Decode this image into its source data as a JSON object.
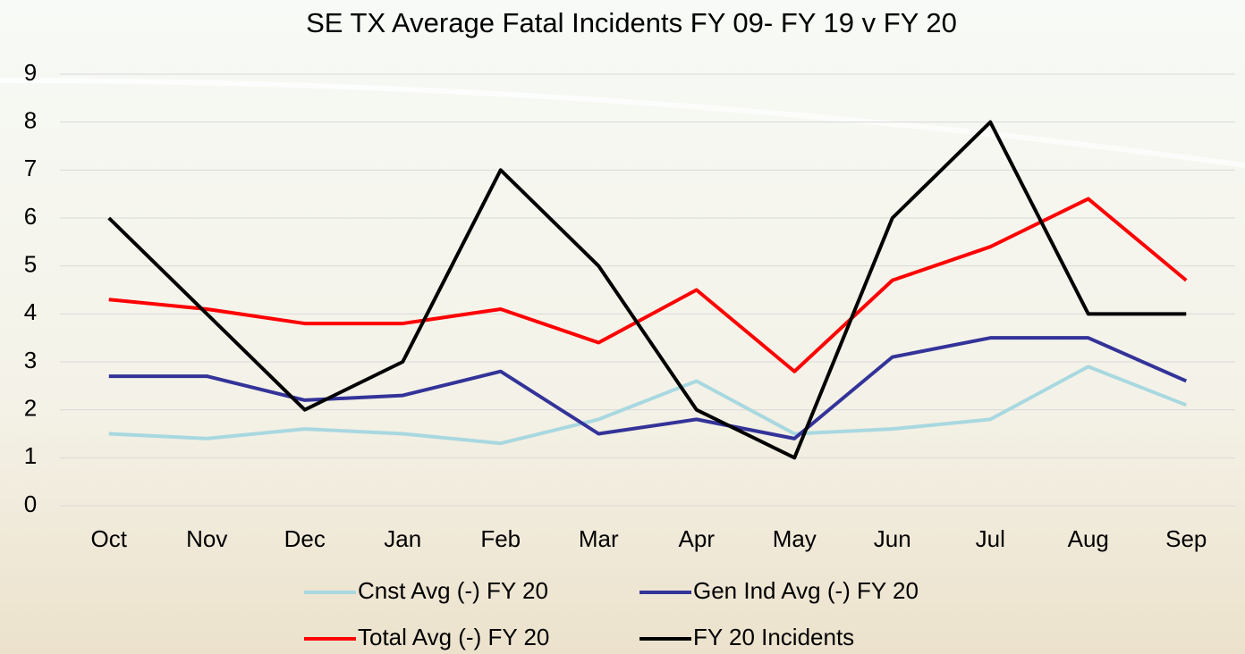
{
  "chart_data": {
    "type": "line",
    "title": "SE TX Average Fatal Incidents FY 09- FY 19 v FY 20",
    "categories": [
      "Oct",
      "Nov",
      "Dec",
      "Jan",
      "Feb",
      "Mar",
      "Apr",
      "May",
      "Jun",
      "Jul",
      "Aug",
      "Sep"
    ],
    "series": [
      {
        "name": "Cnst Avg (-) FY 20",
        "color": "#a8d8e0",
        "values": [
          1.5,
          1.4,
          1.6,
          1.5,
          1.3,
          1.8,
          2.6,
          1.5,
          1.6,
          1.8,
          2.9,
          2.1
        ]
      },
      {
        "name": "Gen Ind Avg (-) FY 20",
        "color": "#333399",
        "values": [
          2.7,
          2.7,
          2.2,
          2.3,
          2.8,
          1.5,
          1.8,
          1.4,
          3.1,
          3.5,
          3.5,
          2.6
        ]
      },
      {
        "name": "Total Avg (-) FY 20",
        "color": "#ff0000",
        "values": [
          4.3,
          4.1,
          3.8,
          3.8,
          4.1,
          3.4,
          4.5,
          2.8,
          4.7,
          5.4,
          6.4,
          4.7
        ]
      },
      {
        "name": "FY 20 Incidents",
        "color": "#000000",
        "values": [
          6,
          4,
          2,
          3,
          7,
          5,
          2,
          1,
          6,
          8,
          4,
          4
        ]
      }
    ],
    "ylim": [
      0,
      9
    ],
    "yticks": [
      0,
      1,
      2,
      3,
      4,
      5,
      6,
      7,
      8,
      9
    ],
    "grid": true,
    "legend": "bottom"
  }
}
